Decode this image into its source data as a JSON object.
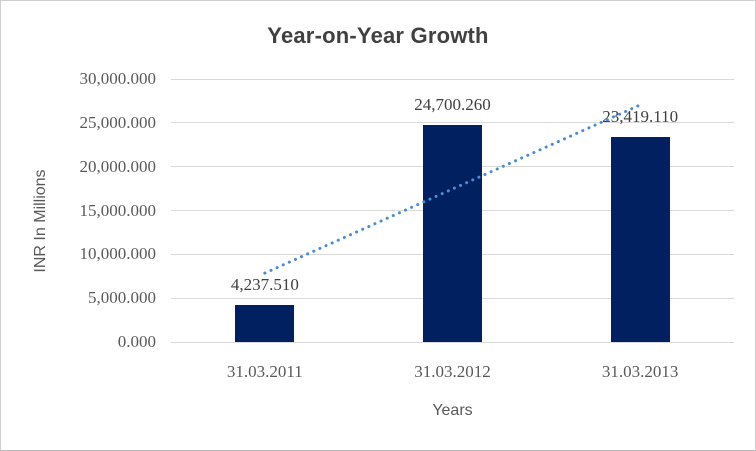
{
  "chart_data": {
    "type": "bar",
    "title": "Year-on-Year Growth",
    "xlabel": "Years",
    "ylabel": "INR In Millions",
    "categories": [
      "31.03.2011",
      "31.03.2012",
      "31.03.2013"
    ],
    "values": [
      4237.51,
      24700.26,
      23419.11
    ],
    "data_labels": [
      "4,237.510",
      "24,700.260",
      "23,419.110"
    ],
    "ylim": [
      0,
      30000
    ],
    "ytick_step": 5000,
    "ytick_values": [
      0,
      5000,
      10000,
      15000,
      20000,
      25000,
      30000
    ],
    "ytick_labels": [
      "0.000",
      "5,000.000",
      "10,000.000",
      "15,000.000",
      "20,000.000",
      "25,000.000",
      "30,000.000"
    ],
    "grid": true,
    "legend": false,
    "trendline": {
      "style": "dotted",
      "shape": "linear",
      "start_value": 7861.5,
      "end_value": 27043.1
    },
    "colors": {
      "bar": "#002060",
      "trendline": "#4a8bd4",
      "gridline": "#d9d9d9",
      "tick_text": "#595959",
      "data_label_text": "#404040",
      "title_text": "#404040",
      "axis_title_text": "#595959",
      "border": "#cfcfcf",
      "background": "#ffffff"
    }
  }
}
